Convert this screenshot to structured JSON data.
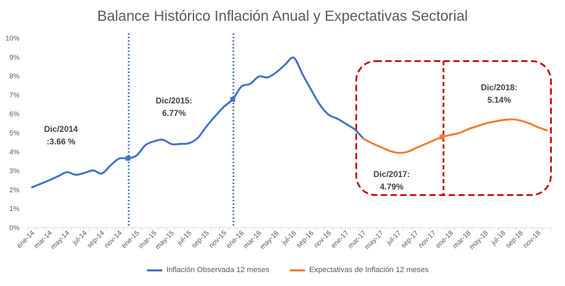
{
  "chart_data": {
    "type": "line",
    "title": "Balance Histórico Inflación Anual y Expectativas Sectorial",
    "xlabel": "",
    "ylabel": "",
    "ylim": [
      0,
      10
    ],
    "y_ticks": [
      "0%",
      "1%",
      "2%",
      "3%",
      "4%",
      "5%",
      "6%",
      "7%",
      "8%",
      "9%",
      "10%"
    ],
    "x_tick_labels": [
      "ene-14",
      "mar-14",
      "may-14",
      "jul-14",
      "sep-14",
      "nov-14",
      "ene-15",
      "mar-15",
      "may-15",
      "jul-15",
      "sep-15",
      "nov-15",
      "ene-16",
      "mar-16",
      "may-16",
      "jul-16",
      "sep-16",
      "nov-16",
      "ene-17",
      "mar-17",
      "may-17",
      "jul-17",
      "sep-17",
      "nov-17",
      "ene-18",
      "mar-18",
      "may-18",
      "jul-18",
      "sep-18",
      "nov-18"
    ],
    "series": [
      {
        "name": "Inflación Observada 12 meses",
        "color": "#4472C4",
        "start": "ene-14",
        "values": [
          2.13,
          2.32,
          2.51,
          2.72,
          2.93,
          2.79,
          2.89,
          3.02,
          2.86,
          3.29,
          3.65,
          3.66,
          3.82,
          4.36,
          4.56,
          4.64,
          4.41,
          4.42,
          4.46,
          4.74,
          5.35,
          5.89,
          6.39,
          6.77,
          7.45,
          7.59,
          7.98,
          7.93,
          8.2,
          8.6,
          8.97,
          8.1,
          7.27,
          6.48,
          5.96,
          5.75,
          5.47,
          5.18,
          4.69
        ]
      },
      {
        "name": "Expectativas de Inflación 12 meses",
        "color": "#ED7D31",
        "start": "mar-17",
        "values": [
          4.69,
          4.45,
          4.25,
          4.05,
          3.95,
          4.0,
          4.2,
          4.4,
          4.6,
          4.79,
          4.9,
          5.0,
          5.2,
          5.35,
          5.5,
          5.6,
          5.68,
          5.72,
          5.65,
          5.5,
          5.3,
          5.14
        ]
      }
    ],
    "annotations": [
      {
        "id": "dic-2014",
        "lines": [
          "Dic/2014",
          ":3.66 %"
        ],
        "month": "dic-14",
        "value": 3.66
      },
      {
        "id": "dic-2015",
        "lines": [
          "Dic/2015:",
          "6.77%"
        ],
        "month": "dic-15",
        "value": 6.77
      },
      {
        "id": "dic-2017",
        "lines": [
          "Dic/2017:",
          "4.79%"
        ],
        "month": "dic-17",
        "value": 4.79
      },
      {
        "id": "dic-2018",
        "lines": [
          "Dic/2018:",
          "5.14%"
        ],
        "month": "dic-18",
        "value": 5.14
      }
    ],
    "markers": [
      "dic-14",
      "dic-15",
      "dic-17"
    ],
    "highlight_box": {
      "from": "feb-17",
      "to": "dic-18",
      "color": "#C00000",
      "style": "dashed"
    },
    "grid": false,
    "legend": "bottom"
  }
}
